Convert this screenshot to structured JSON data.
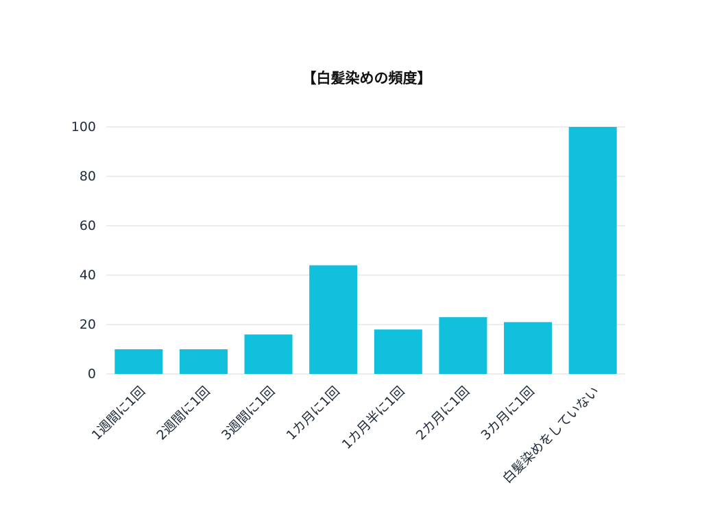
{
  "chart_data": {
    "type": "bar",
    "title": "【白髪染めの頻度】",
    "categories": [
      "1週間に1回",
      "2週間に1回",
      "3週間に1回",
      "1カ月に1回",
      "1カ月半に1回",
      "2カ月に1回",
      "3カ月に1回",
      "白髪染めをしていない"
    ],
    "values": [
      10,
      10,
      16,
      44,
      18,
      23,
      21,
      100
    ],
    "ylim": [
      0,
      100
    ],
    "yticks": [
      0,
      20,
      40,
      60,
      80,
      100
    ],
    "grid": true,
    "bar_color": "#10c0dc",
    "grid_color": "#d8d8d8"
  }
}
